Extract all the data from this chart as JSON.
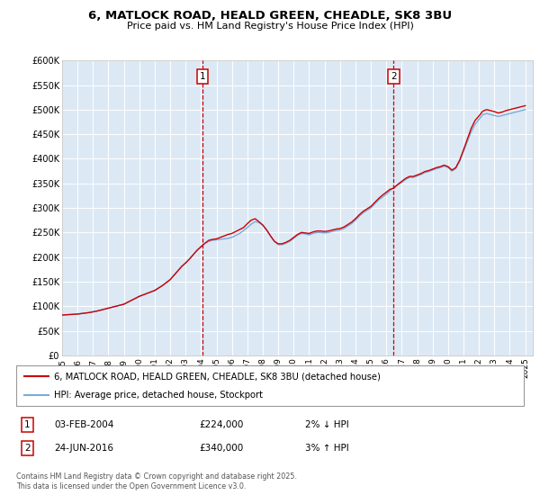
{
  "title": "6, MATLOCK ROAD, HEALD GREEN, CHEADLE, SK8 3BU",
  "subtitle": "Price paid vs. HM Land Registry's House Price Index (HPI)",
  "ylim": [
    0,
    600000
  ],
  "yticks": [
    0,
    50000,
    100000,
    150000,
    200000,
    250000,
    300000,
    350000,
    400000,
    450000,
    500000,
    550000,
    600000
  ],
  "ytick_labels": [
    "£0",
    "£50K",
    "£100K",
    "£150K",
    "£200K",
    "£250K",
    "£300K",
    "£350K",
    "£400K",
    "£450K",
    "£500K",
    "£550K",
    "£600K"
  ],
  "xlim_start": 1995.0,
  "xlim_end": 2025.5,
  "xticks": [
    1995,
    1996,
    1997,
    1998,
    1999,
    2000,
    2001,
    2002,
    2003,
    2004,
    2005,
    2006,
    2007,
    2008,
    2009,
    2010,
    2011,
    2012,
    2013,
    2014,
    2015,
    2016,
    2017,
    2018,
    2019,
    2020,
    2021,
    2022,
    2023,
    2024,
    2025
  ],
  "background_color": "#ffffff",
  "plot_bg_color": "#dce9f5",
  "grid_color": "#ffffff",
  "red_color": "#cc0000",
  "blue_color": "#7aabdb",
  "sale1_x": 2004.09,
  "sale1_y": 224000,
  "sale1_label": "1",
  "sale1_date": "03-FEB-2004",
  "sale1_price": "£224,000",
  "sale1_pct": "2% ↓ HPI",
  "sale2_x": 2016.48,
  "sale2_y": 340000,
  "sale2_label": "2",
  "sale2_date": "24-JUN-2016",
  "sale2_price": "£340,000",
  "sale2_pct": "3% ↑ HPI",
  "legend_line1": "6, MATLOCK ROAD, HEALD GREEN, CHEADLE, SK8 3BU (detached house)",
  "legend_line2": "HPI: Average price, detached house, Stockport",
  "footer": "Contains HM Land Registry data © Crown copyright and database right 2025.\nThis data is licensed under the Open Government Licence v3.0.",
  "hpi_data": {
    "years": [
      1995.0,
      1995.25,
      1995.5,
      1995.75,
      1996.0,
      1996.25,
      1996.5,
      1996.75,
      1997.0,
      1997.25,
      1997.5,
      1997.75,
      1998.0,
      1998.25,
      1998.5,
      1998.75,
      1999.0,
      1999.25,
      1999.5,
      1999.75,
      2000.0,
      2000.25,
      2000.5,
      2000.75,
      2001.0,
      2001.25,
      2001.5,
      2001.75,
      2002.0,
      2002.25,
      2002.5,
      2002.75,
      2003.0,
      2003.25,
      2003.5,
      2003.75,
      2004.0,
      2004.25,
      2004.5,
      2004.75,
      2005.0,
      2005.25,
      2005.5,
      2005.75,
      2006.0,
      2006.25,
      2006.5,
      2006.75,
      2007.0,
      2007.25,
      2007.5,
      2007.75,
      2008.0,
      2008.25,
      2008.5,
      2008.75,
      2009.0,
      2009.25,
      2009.5,
      2009.75,
      2010.0,
      2010.25,
      2010.5,
      2010.75,
      2011.0,
      2011.25,
      2011.5,
      2011.75,
      2012.0,
      2012.25,
      2012.5,
      2012.75,
      2013.0,
      2013.25,
      2013.5,
      2013.75,
      2014.0,
      2014.25,
      2014.5,
      2014.75,
      2015.0,
      2015.25,
      2015.5,
      2015.75,
      2016.0,
      2016.25,
      2016.5,
      2016.75,
      2017.0,
      2017.25,
      2017.5,
      2017.75,
      2018.0,
      2018.25,
      2018.5,
      2018.75,
      2019.0,
      2019.25,
      2019.5,
      2019.75,
      2020.0,
      2020.25,
      2020.5,
      2020.75,
      2021.0,
      2021.25,
      2021.5,
      2021.75,
      2022.0,
      2022.25,
      2022.5,
      2022.75,
      2023.0,
      2023.25,
      2023.5,
      2023.75,
      2024.0,
      2024.25,
      2024.5,
      2024.75,
      2025.0
    ],
    "values": [
      82000,
      82500,
      83000,
      83500,
      84000,
      85000,
      86000,
      87000,
      88500,
      90000,
      92000,
      94000,
      96000,
      98000,
      100000,
      102000,
      104000,
      108000,
      112000,
      116000,
      120000,
      123000,
      126000,
      129000,
      132000,
      137000,
      142000,
      148000,
      154000,
      163000,
      172000,
      181000,
      188000,
      196000,
      205000,
      214000,
      220000,
      228000,
      232000,
      234000,
      235000,
      236000,
      237000,
      238000,
      240000,
      244000,
      248000,
      254000,
      260000,
      267000,
      272000,
      270000,
      265000,
      255000,
      243000,
      232000,
      225000,
      225000,
      228000,
      232000,
      238000,
      244000,
      248000,
      247000,
      245000,
      248000,
      250000,
      250000,
      249000,
      250000,
      252000,
      254000,
      255000,
      258000,
      263000,
      268000,
      275000,
      283000,
      290000,
      295000,
      300000,
      308000,
      316000,
      322000,
      328000,
      335000,
      342000,
      347000,
      352000,
      358000,
      362000,
      362000,
      365000,
      368000,
      372000,
      374000,
      377000,
      380000,
      382000,
      385000,
      382000,
      375000,
      380000,
      395000,
      415000,
      435000,
      455000,
      470000,
      480000,
      490000,
      492000,
      490000,
      488000,
      486000,
      488000,
      490000,
      492000,
      494000,
      496000,
      498000,
      500000
    ]
  },
  "price_data": {
    "years": [
      1995.0,
      1995.25,
      1995.5,
      1995.75,
      1996.0,
      1996.25,
      1996.5,
      1996.75,
      1997.0,
      1997.25,
      1997.5,
      1997.75,
      1998.0,
      1998.25,
      1998.5,
      1998.75,
      1999.0,
      1999.25,
      1999.5,
      1999.75,
      2000.0,
      2000.25,
      2000.5,
      2000.75,
      2001.0,
      2001.25,
      2001.5,
      2001.75,
      2002.0,
      2002.25,
      2002.5,
      2002.75,
      2003.0,
      2003.25,
      2003.5,
      2003.75,
      2004.09,
      2004.25,
      2004.5,
      2004.75,
      2005.0,
      2005.25,
      2005.5,
      2005.75,
      2006.0,
      2006.25,
      2006.5,
      2006.75,
      2007.0,
      2007.25,
      2007.5,
      2007.75,
      2008.0,
      2008.25,
      2008.5,
      2008.75,
      2009.0,
      2009.25,
      2009.5,
      2009.75,
      2010.0,
      2010.25,
      2010.5,
      2010.75,
      2011.0,
      2011.25,
      2011.5,
      2011.75,
      2012.0,
      2012.25,
      2012.5,
      2012.75,
      2013.0,
      2013.25,
      2013.5,
      2013.75,
      2014.0,
      2014.25,
      2014.5,
      2014.75,
      2015.0,
      2015.25,
      2015.5,
      2015.75,
      2016.0,
      2016.25,
      2016.48,
      2016.75,
      2017.0,
      2017.25,
      2017.5,
      2017.75,
      2018.0,
      2018.25,
      2018.5,
      2018.75,
      2019.0,
      2019.25,
      2019.5,
      2019.75,
      2020.0,
      2020.25,
      2020.5,
      2020.75,
      2021.0,
      2021.25,
      2021.5,
      2021.75,
      2022.0,
      2022.25,
      2022.5,
      2022.75,
      2023.0,
      2023.25,
      2023.5,
      2023.75,
      2024.0,
      2024.25,
      2024.5,
      2024.75,
      2025.0
    ],
    "values": [
      82000,
      82500,
      83000,
      83500,
      84000,
      85000,
      86000,
      87000,
      88500,
      90000,
      92000,
      94000,
      96000,
      98000,
      100000,
      102000,
      104000,
      108000,
      112000,
      116000,
      120000,
      123000,
      126000,
      129000,
      132000,
      137000,
      142000,
      148000,
      154000,
      163000,
      172000,
      181000,
      188000,
      196000,
      205000,
      214000,
      224000,
      228000,
      234000,
      236000,
      237000,
      240000,
      243000,
      246000,
      248000,
      252000,
      256000,
      260000,
      268000,
      275000,
      278000,
      272000,
      265000,
      255000,
      243000,
      232000,
      227000,
      227000,
      230000,
      234000,
      240000,
      246000,
      250000,
      249000,
      248000,
      251000,
      253000,
      253000,
      252000,
      253000,
      255000,
      257000,
      258000,
      261000,
      266000,
      271000,
      278000,
      286000,
      293000,
      298000,
      303000,
      311000,
      319000,
      326000,
      332000,
      338000,
      340000,
      348000,
      354000,
      360000,
      364000,
      364000,
      367000,
      370000,
      374000,
      376000,
      379000,
      382000,
      384000,
      387000,
      384000,
      377000,
      382000,
      397000,
      418000,
      440000,
      462000,
      478000,
      487000,
      497000,
      500000,
      498000,
      496000,
      493000,
      495000,
      498000,
      500000,
      502000,
      504000,
      506000,
      508000
    ]
  }
}
